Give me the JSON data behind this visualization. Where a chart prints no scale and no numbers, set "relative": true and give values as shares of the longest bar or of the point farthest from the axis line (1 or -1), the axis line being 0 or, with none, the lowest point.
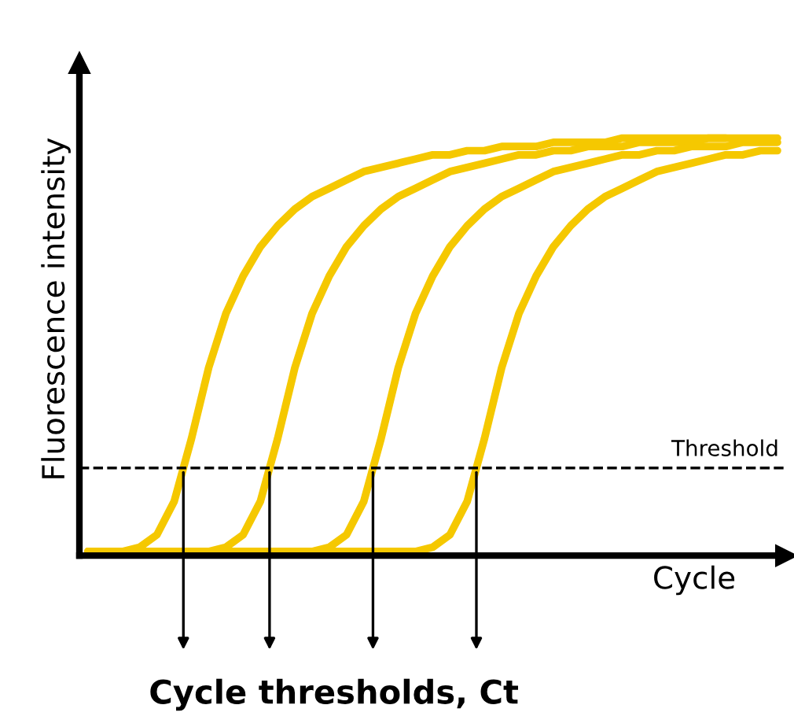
{
  "chart_data": {
    "type": "line",
    "relative": true,
    "xlabel": "Cycle",
    "ylabel": "Fluorescence intensity",
    "categories": [
      null,
      null,
      null,
      null,
      null,
      null,
      null,
      null,
      null,
      null,
      null,
      null,
      null,
      null,
      null,
      null,
      null,
      null,
      null,
      null,
      null,
      null,
      null,
      null,
      null,
      null,
      null,
      null,
      null,
      null,
      null,
      null,
      null,
      null,
      null,
      null,
      null,
      null,
      null,
      null,
      null
    ],
    "series": [
      {
        "color": "#f5c800",
        "values": [
          0.01,
          0.01,
          0.01,
          0.02,
          0.05,
          0.13,
          0.28,
          0.45,
          0.58,
          0.67,
          0.74,
          0.79,
          0.83,
          0.86,
          0.88,
          0.9,
          0.92,
          0.93,
          0.94,
          0.95,
          0.96,
          0.96,
          0.97,
          0.97,
          0.98,
          0.98,
          0.98,
          0.99,
          0.99,
          0.99,
          0.99,
          1.0,
          1.0,
          1.0,
          1.0,
          1.0,
          1.0,
          1.0,
          null,
          null,
          null
        ]
      },
      {
        "color": "#f5c800",
        "values": [
          0.01,
          0.01,
          0.01,
          0.01,
          0.01,
          0.01,
          0.01,
          0.01,
          0.02,
          0.05,
          0.13,
          0.28,
          0.45,
          0.58,
          0.67,
          0.74,
          0.79,
          0.83,
          0.86,
          0.88,
          0.9,
          0.92,
          0.93,
          0.94,
          0.95,
          0.96,
          0.96,
          0.97,
          0.97,
          0.98,
          0.98,
          0.98,
          0.99,
          0.99,
          0.99,
          0.99,
          1.0,
          1.0,
          1.0,
          1.0,
          1.0
        ]
      },
      {
        "color": "#f5c800",
        "values": [
          0.01,
          0.01,
          0.01,
          0.01,
          0.01,
          0.01,
          0.01,
          0.01,
          0.01,
          0.01,
          0.01,
          0.01,
          0.01,
          0.01,
          0.02,
          0.05,
          0.13,
          0.28,
          0.45,
          0.58,
          0.67,
          0.74,
          0.79,
          0.83,
          0.86,
          0.88,
          0.9,
          0.92,
          0.93,
          0.94,
          0.95,
          0.96,
          0.96,
          0.97,
          0.97,
          0.98,
          0.98,
          0.98,
          0.99,
          0.99,
          0.99
        ]
      },
      {
        "color": "#f5c800",
        "values": [
          0.01,
          0.01,
          0.01,
          0.01,
          0.01,
          0.01,
          0.01,
          0.01,
          0.01,
          0.01,
          0.01,
          0.01,
          0.01,
          0.01,
          0.01,
          0.01,
          0.01,
          0.01,
          0.01,
          0.01,
          0.02,
          0.05,
          0.13,
          0.28,
          0.45,
          0.58,
          0.67,
          0.74,
          0.79,
          0.83,
          0.86,
          0.88,
          0.9,
          0.92,
          0.93,
          0.94,
          0.95,
          0.96,
          0.96,
          0.97,
          0.97
        ]
      }
    ],
    "ref_lines": [
      {
        "axis": "y",
        "value": 0.21,
        "label": "Threshold",
        "color": "#000000",
        "line_style": "dashed"
      }
    ],
    "annotations": [
      "Cycle thresholds, Ct"
    ],
    "grid": false,
    "legend": false,
    "marker": "none",
    "line_style": "solid"
  }
}
